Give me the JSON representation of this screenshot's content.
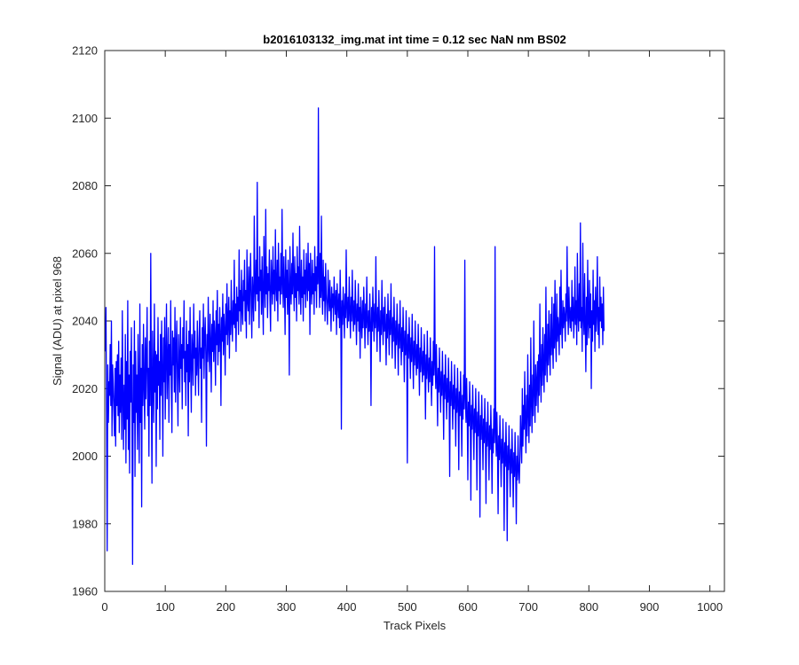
{
  "chart_data": {
    "type": "line",
    "title": "b2016103132_img.mat int time = 0.12 sec  NaN nm BS02",
    "xlabel": "Track Pixels",
    "ylabel": "Signal (ADU) at pixel 968",
    "xlim": [
      0,
      1024
    ],
    "ylim": [
      1960,
      2120
    ],
    "x_ticks": [
      0,
      100,
      200,
      300,
      400,
      500,
      600,
      700,
      800,
      900,
      1000
    ],
    "x_tick_labels": [
      "0",
      "100",
      "200",
      "300",
      "400",
      "500",
      "600",
      "700",
      "800",
      "900",
      "1000"
    ],
    "y_ticks": [
      1960,
      1980,
      2000,
      2020,
      2040,
      2060,
      2080,
      2100,
      2120
    ],
    "y_tick_labels": [
      "1960",
      "1980",
      "2000",
      "2020",
      "2040",
      "2060",
      "2080",
      "2100",
      "2120"
    ],
    "grid": false,
    "legend": "none",
    "series": [
      {
        "name": "signal",
        "color": "#0000ff",
        "x_start": 1,
        "values": [
          2031,
          2044,
          2012,
          1972,
          2027,
          2010,
          2022,
          2018,
          2033,
          2015,
          2040,
          2006,
          2027,
          2021,
          2014,
          2006,
          2026,
          2003,
          2028,
          2015,
          2030,
          2012,
          2034,
          2007,
          2024,
          2013,
          2029,
          2005,
          2043,
          2018,
          2002,
          2021,
          2008,
          2036,
          1998,
          2028,
          2011,
          2046,
          2002,
          2024,
          1995,
          2031,
          2016,
          2038,
          2011,
          1968,
          2027,
          2010,
          2040,
          1994,
          2031,
          2013,
          2024,
          2002,
          2036,
          2018,
          1998,
          2045,
          2010,
          2026,
          1985,
          2033,
          2015,
          2039,
          2021,
          2008,
          2035,
          2017,
          2029,
          2044,
          2012,
          2026,
          2000,
          2034,
          2015,
          2060,
          2020,
          1992,
          2037,
          2024,
          2010,
          2045,
          2019,
          2031,
          1997,
          2030,
          2014,
          2041,
          2021,
          2028,
          2005,
          2036,
          2018,
          2040,
          2025,
          2000,
          2035,
          2022,
          2041,
          2011,
          2030,
          2045,
          2017,
          2027,
          2038,
          2010,
          2033,
          2024,
          2046,
          2020,
          2007,
          2037,
          2027,
          2035,
          2019,
          2044,
          2016,
          2031,
          2040,
          2023,
          2009,
          2036,
          2028,
          2019,
          2041,
          2026,
          2033,
          2014,
          2038,
          2029,
          2046,
          2022,
          2031,
          2015,
          2040,
          2025,
          2033,
          2006,
          2037,
          2022,
          2044,
          2027,
          2013,
          2036,
          2031,
          2021,
          2045,
          2029,
          2037,
          2018,
          2032,
          2024,
          2040,
          2028,
          2018,
          2035,
          2043,
          2026,
          2032,
          2010,
          2038,
          2029,
          2045,
          2023,
          2035,
          2041,
          2030,
          2003,
          2036,
          2028,
          2047,
          2032,
          2025,
          2042,
          2034,
          2019,
          2039,
          2031,
          2046,
          2028,
          2040,
          2035,
          2021,
          2043,
          2033,
          2049,
          2027,
          2039,
          2031,
          2044,
          2036,
          2015,
          2041,
          2034,
          2048,
          2030,
          2042,
          2037,
          2024,
          2045,
          2036,
          2051,
          2033,
          2040,
          2047,
          2029,
          2043,
          2036,
          2052,
          2040,
          2034,
          2046,
          2039,
          2058,
          2038,
          2045,
          2031,
          2050,
          2040,
          2047,
          2036,
          2061,
          2043,
          2049,
          2037,
          2055,
          2044,
          2039,
          2052,
          2046,
          2058,
          2040,
          2049,
          2035,
          2061,
          2046,
          2043,
          2056,
          2039,
          2051,
          2060,
          2045,
          2035,
          2053,
          2047,
          2040,
          2071,
          2050,
          2043,
          2058,
          2048,
          2081,
          2046,
          2053,
          2038,
          2062,
          2049,
          2055,
          2042,
          2059,
          2047,
          2036,
          2065,
          2051,
          2044,
          2073,
          2048,
          2056,
          2041,
          2054,
          2049,
          2061,
          2046,
          2037,
          2058,
          2052,
          2045,
          2062,
          2048,
          2055,
          2043,
          2067,
          2050,
          2046,
          2058,
          2040,
          2063,
          2049,
          2053,
          2045,
          2060,
          2048,
          2073,
          2051,
          2044,
          2059,
          2050,
          2036,
          2061,
          2047,
          2055,
          2042,
          2058,
          2049,
          2024,
          2062,
          2050,
          2045,
          2057,
          2048,
          2066,
          2051,
          2043,
          2059,
          2047,
          2054,
          2040,
          2062,
          2049,
          2056,
          2045,
          2068,
          2050,
          2042,
          2058,
          2047,
          2053,
          2040,
          2061,
          2048,
          2055,
          2044,
          2060,
          2051,
          2046,
          2063,
          2049,
          2057,
          2036,
          2060,
          2050,
          2045,
          2058,
          2048,
          2054,
          2042,
          2062,
          2049,
          2056,
          2044,
          2059,
          2051,
          2103,
          2052,
          2044,
          2060,
          2047,
          2071,
          2049,
          2042,
          2058,
          2046,
          2053,
          2040,
          2057,
          2048,
          2044,
          2039,
          2055,
          2047,
          2043,
          2052,
          2045,
          2037,
          2050,
          2044,
          2048,
          2040,
          2053,
          2046,
          2042,
          2049,
          2036,
          2051,
          2045,
          2041,
          2048,
          2038,
          2055,
          2044,
          2008,
          2046,
          2039,
          2050,
          2043,
          2035,
          2048,
          2041,
          2061,
          2044,
          2038,
          2047,
          2040,
          2053,
          2043,
          2035,
          2047,
          2040,
          2055,
          2043,
          2037,
          2046,
          2039,
          2052,
          2042,
          2033,
          2045,
          2040,
          2051,
          2037,
          2044,
          2029,
          2047,
          2040,
          2035,
          2046,
          2038,
          2050,
          2042,
          2032,
          2045,
          2038,
          2053,
          2040,
          2033,
          2043,
          2037,
          2048,
          2039,
          2015,
          2044,
          2037,
          2050,
          2041,
          2034,
          2045,
          2038,
          2059,
          2040,
          2031,
          2044,
          2037,
          2049,
          2039,
          2028,
          2043,
          2036,
          2052,
          2040,
          2033,
          2044,
          2037,
          2047,
          2038,
          2027,
          2042,
          2035,
          2048,
          2039,
          2030,
          2043,
          2036,
          2051,
          2038,
          2029,
          2041,
          2034,
          2047,
          2037,
          2026,
          2040,
          2033,
          2045,
          2036,
          2024,
          2039,
          2032,
          2046,
          2035,
          2027,
          2038,
          2031,
          2044,
          2034,
          2022,
          2037,
          2030,
          2043,
          2033,
          1998,
          2036,
          2029,
          2041,
          2032,
          2023,
          2035,
          2028,
          2042,
          2031,
          2020,
          2034,
          2027,
          2040,
          2030,
          2024,
          2033,
          2026,
          2039,
          2029,
          2018,
          2032,
          2025,
          2038,
          2028,
          2022,
          2031,
          2024,
          2036,
          2027,
          2011,
          2030,
          2023,
          2037,
          2026,
          2019,
          2029,
          2022,
          2035,
          2025,
          2015,
          2028,
          2021,
          2034,
          2024,
          2062,
          2027,
          2020,
          2033,
          2023,
          2009,
          2026,
          2019,
          2032,
          2022,
          2013,
          2025,
          2018,
          2031,
          2021,
          2005,
          2024,
          2017,
          2030,
          2020,
          2011,
          2023,
          2016,
          2029,
          2019,
          1994,
          2022,
          2015,
          2028,
          2018,
          2008,
          2021,
          2014,
          2027,
          2017,
          2003,
          2020,
          2013,
          2026,
          2016,
          1996,
          2019,
          2012,
          2025,
          2015,
          2000,
          2018,
          2011,
          2024,
          2014,
          2058,
          2017,
          2010,
          2023,
          2013,
          1993,
          2016,
          2009,
          2022,
          2012,
          1987,
          2015,
          2008,
          2021,
          2011,
          1999,
          2014,
          2007,
          2020,
          2010,
          1990,
          2013,
          2006,
          2019,
          2009,
          1982,
          2012,
          2005,
          2018,
          2008,
          1996,
          2011,
          2004,
          2017,
          2007,
          1986,
          2010,
          2003,
          2016,
          2006,
          1993,
          2009,
          2002,
          2015,
          2005,
          1989,
          2008,
          2001,
          2014,
          2004,
          2062,
          2007,
          2000,
          2013,
          2003,
          1983,
          2006,
          1999,
          2012,
          2002,
          1991,
          2005,
          1998,
          2011,
          2001,
          1978,
          2004,
          1997,
          2010,
          2000,
          1975,
          2003,
          1996,
          2009,
          1999,
          1988,
          2002,
          1995,
          2008,
          1998,
          1985,
          2001,
          1994,
          2007,
          1997,
          1980,
          2000,
          1993,
          2006,
          1996,
          1992,
          1999,
          2012,
          2005,
          1998,
          2020,
          2003,
          2015,
          2008,
          2025,
          2010,
          2001,
          2018,
          2006,
          2030,
          2013,
          2004,
          2021,
          2009,
          2035,
          2016,
          2007,
          2024,
          2012,
          2040,
          2019,
          2010,
          2027,
          2015,
          2022,
          2028,
          2013,
          2030,
          2018,
          2045,
          2025,
          2016,
          2033,
          2021,
          2038,
          2027,
          2019,
          2036,
          2024,
          2050,
          2029,
          2022,
          2039,
          2027,
          2043,
          2031,
          2024,
          2042,
          2030,
          2047,
          2033,
          2026,
          2045,
          2032,
          2052,
          2035,
          2028,
          2048,
          2034,
          2041,
          2037,
          2030,
          2050,
          2036,
          2055,
          2039,
          2032,
          2046,
          2038,
          2044,
          2041,
          2034,
          2048,
          2040,
          2062,
          2043,
          2036,
          2050,
          2042,
          2038,
          2044,
          2037,
          2052,
          2040,
          2047,
          2035,
          2041,
          2056,
          2039,
          2046,
          2033,
          2060,
          2042,
          2037,
          2051,
          2040,
          2069,
          2038,
          2044,
          2031,
          2063,
          2041,
          2036,
          2054,
          2039,
          2025,
          2047,
          2033,
          2058,
          2040,
          2035,
          2052,
          2038,
          2048,
          2020,
          2043,
          2034,
          2055,
          2039,
          2046,
          2031,
          2050,
          2037,
          2042,
          2059,
          2036,
          2044,
          2032,
          2053,
          2040,
          2047,
          2038,
          2045,
          2033,
          2050,
          2037
        ]
      }
    ]
  }
}
